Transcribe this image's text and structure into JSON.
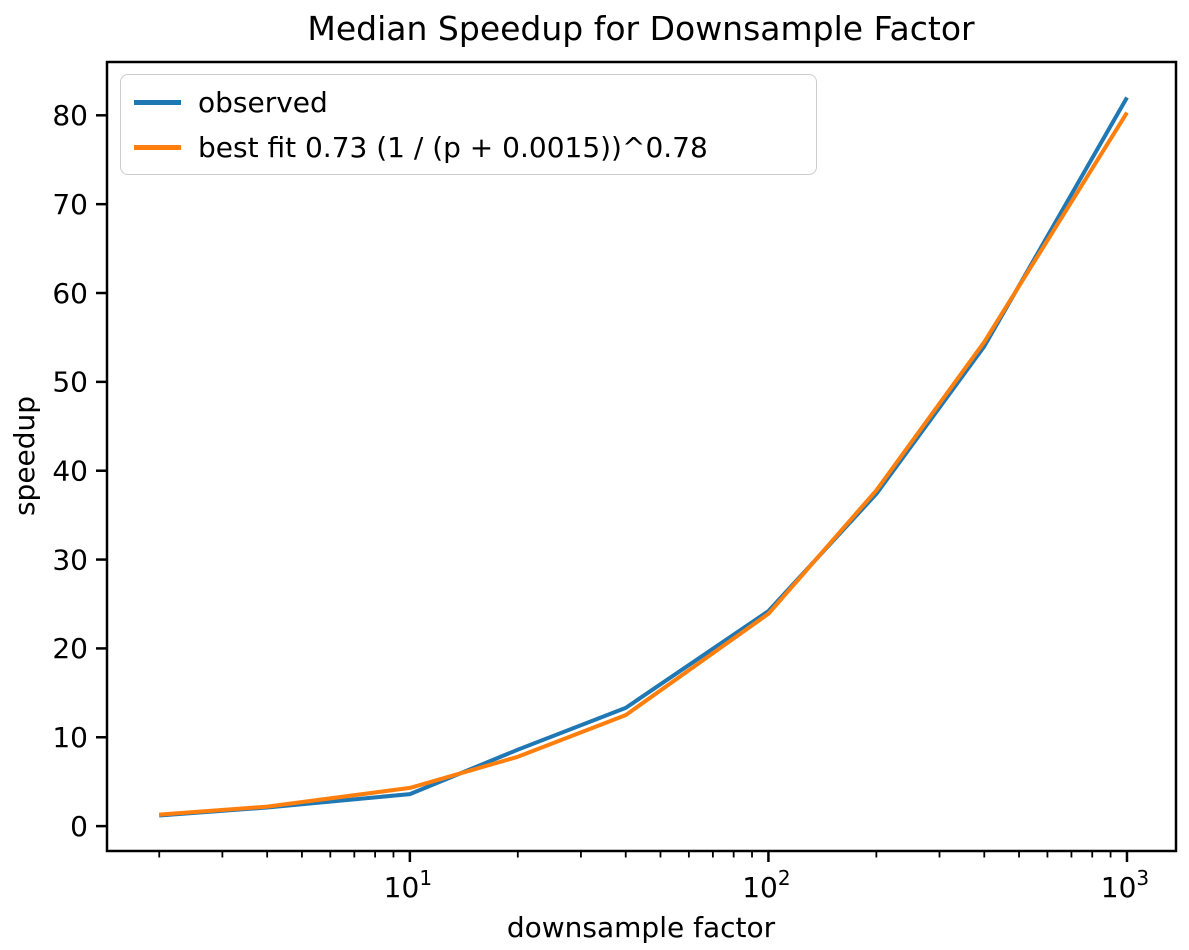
{
  "chart_data": {
    "type": "line",
    "title": "Median Speedup for Downsample Factor",
    "xlabel": "downsample factor",
    "ylabel": "speedup",
    "x_scale": "log",
    "grid": false,
    "x": [
      2,
      4,
      10,
      20,
      40,
      100,
      200,
      400,
      1000
    ],
    "series": [
      {
        "name": "observed",
        "color": "#1f77b4",
        "values": [
          1.2,
          2.1,
          3.6,
          8.6,
          13.3,
          24.2,
          37.4,
          54.0,
          82.0
        ]
      },
      {
        "name": "best fit 0.73 (1 / (p + 0.0015))^0.78",
        "color": "#ff7f0e",
        "values": [
          1.3,
          2.2,
          4.3,
          7.8,
          12.5,
          23.9,
          37.8,
          54.5,
          80.3
        ]
      }
    ],
    "xlim": [
      1.43,
      1370
    ],
    "ylim": [
      -2.8,
      86
    ],
    "yticks": [
      0,
      10,
      20,
      30,
      40,
      50,
      60,
      70,
      80
    ],
    "xticks": [
      {
        "base": "10",
        "exponent": "1",
        "value": 10
      },
      {
        "base": "10",
        "exponent": "2",
        "value": 100
      },
      {
        "base": "10",
        "exponent": "3",
        "value": 1000
      }
    ],
    "legend": {
      "position": "upper left"
    }
  }
}
